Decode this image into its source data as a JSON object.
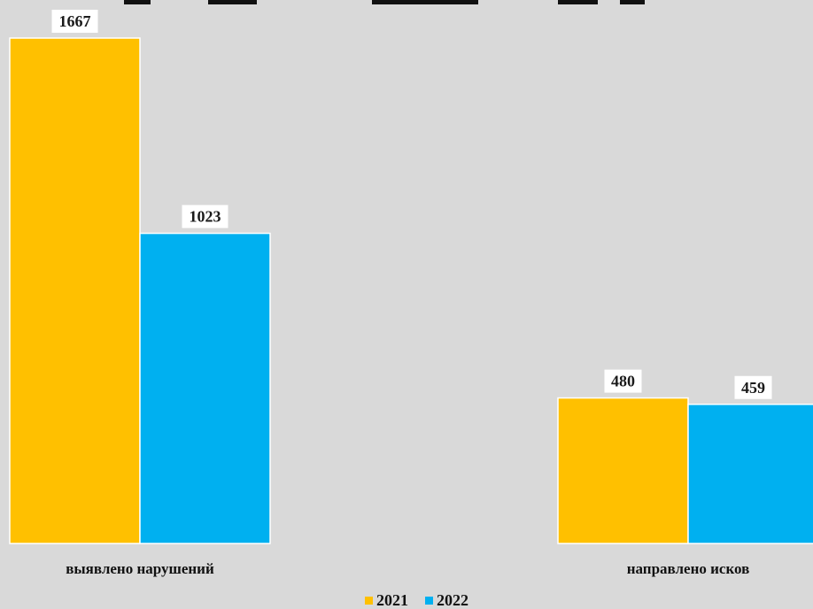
{
  "chart_data": {
    "type": "bar",
    "title": "",
    "xlabel": "",
    "ylabel": "",
    "categories": [
      "выявлено нарушений",
      "направлено исков"
    ],
    "series": [
      {
        "name": "2021",
        "values": [
          1667,
          480
        ],
        "color": "#ffc000"
      },
      {
        "name": "2022",
        "values": [
          1023,
          459
        ],
        "color": "#00b0f0"
      }
    ],
    "ylim": [
      0,
      1667
    ],
    "grid": false,
    "legend": "bottom-center",
    "data_labels": true
  }
}
